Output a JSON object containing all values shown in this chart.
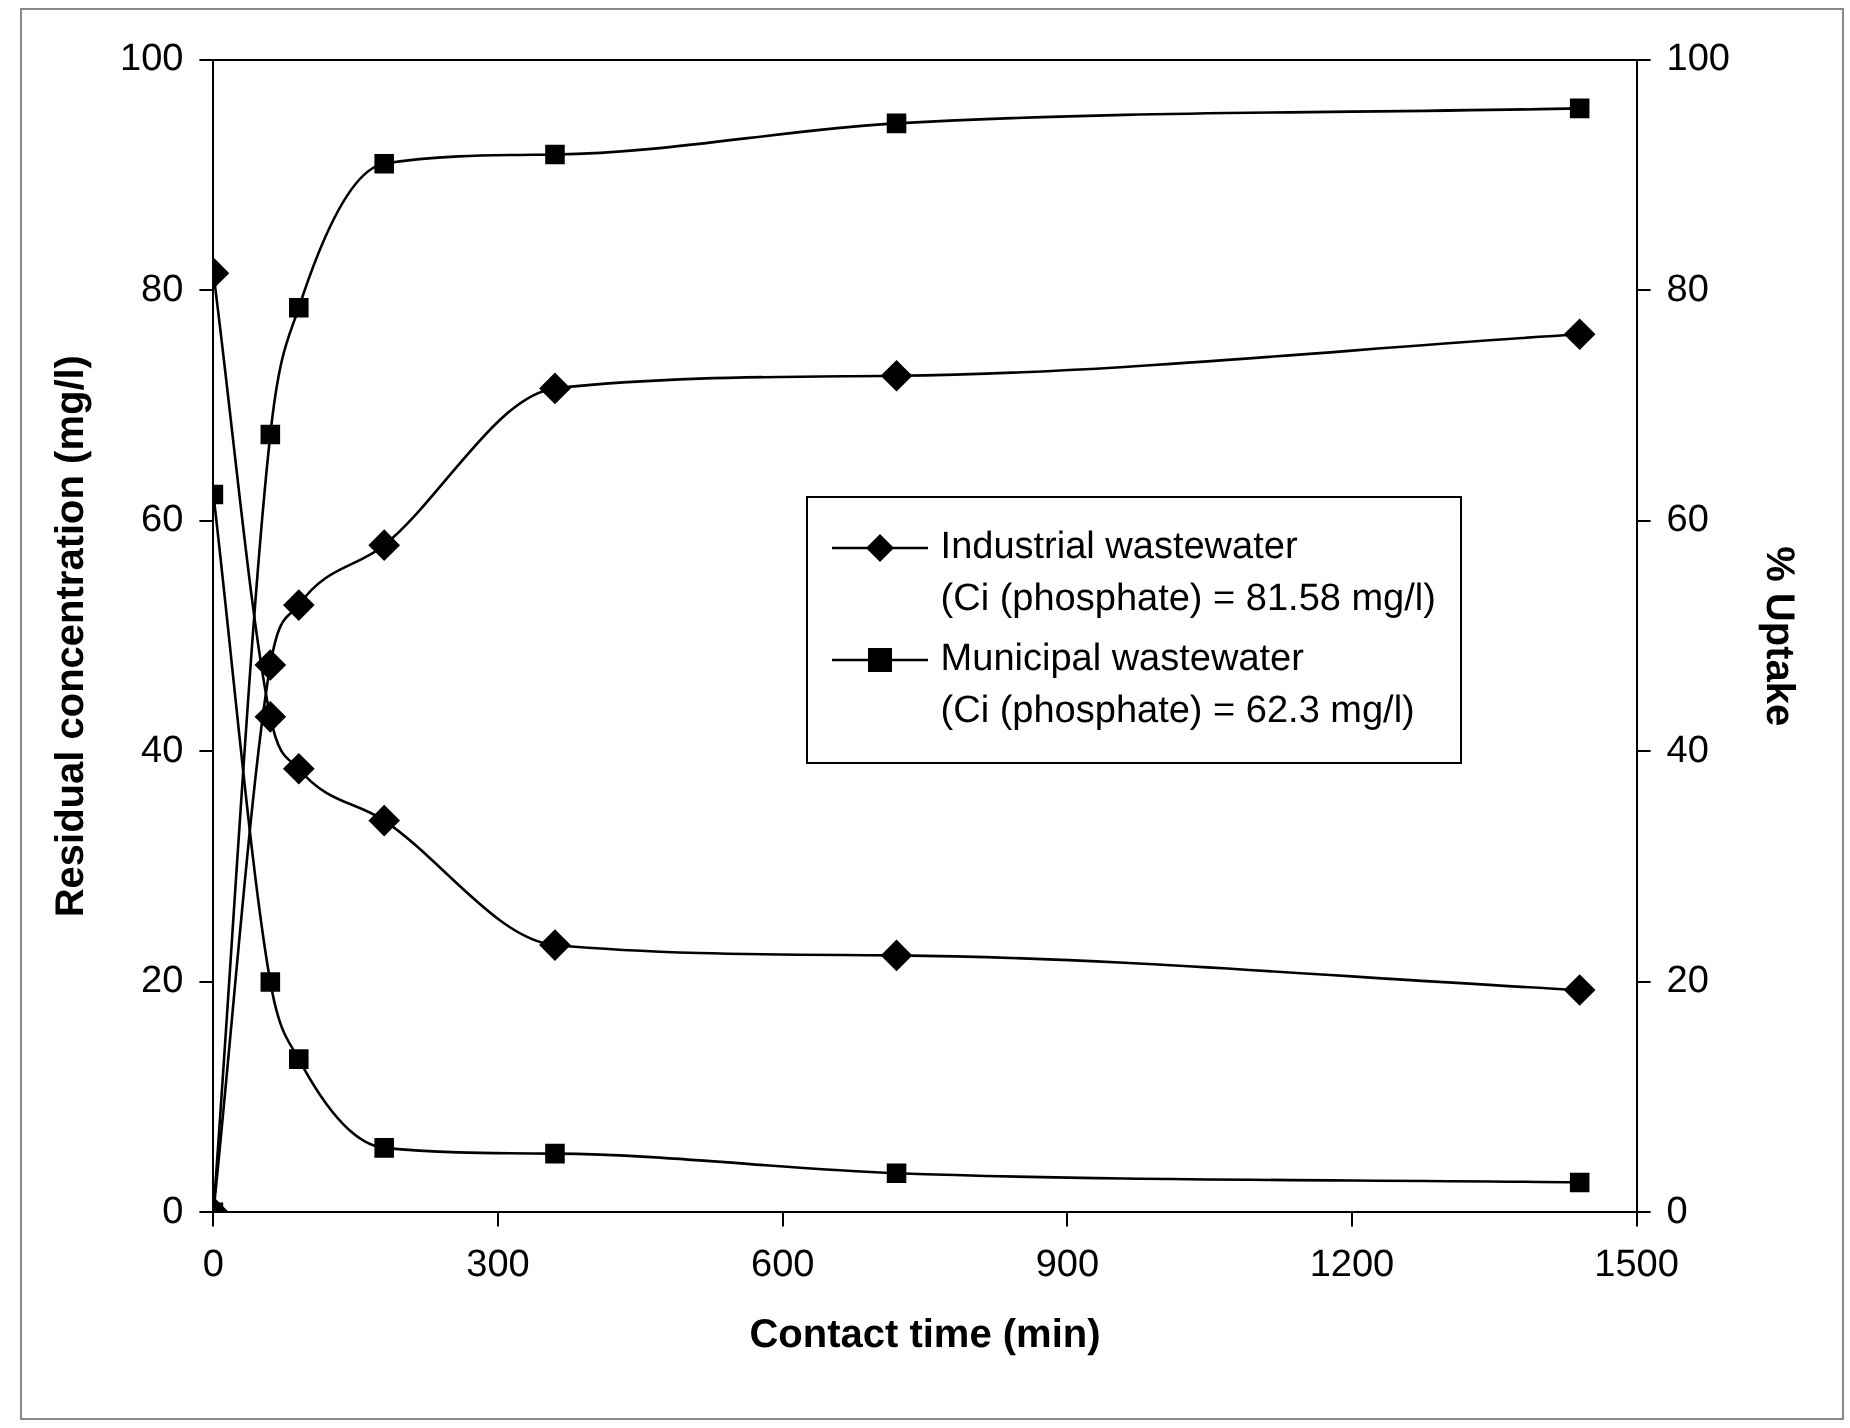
{
  "chart_data": {
    "type": "line",
    "xlabel": "Contact time (min)",
    "ylabel": "Residual concentration (mg/l)",
    "y2label": "% Uptake",
    "x": [
      0,
      60,
      90,
      180,
      360,
      720,
      1440
    ],
    "xlim": [
      0,
      1500
    ],
    "xticks": [
      0,
      300,
      600,
      900,
      1200,
      1500
    ],
    "ylim": [
      0,
      100
    ],
    "yticks": [
      0,
      20,
      40,
      60,
      80,
      100
    ],
    "y2lim": [
      0,
      100
    ],
    "y2ticks": [
      0,
      20,
      40,
      60,
      80,
      100
    ],
    "grid": false,
    "legend": "right",
    "line_style": "solid",
    "series": [
      {
        "name": "Industrial wastewater\n(Ci (phosphate) = 81.58 mg/l)",
        "color": "#000000",
        "marker": "diamond",
        "values": [
          81.5,
          43,
          38.5,
          34,
          23.2,
          22.3,
          19.3
        ]
      },
      {
        "name": "Municipal wastewater\n(Ci (phosphate) = 62.3 mg/l)",
        "color": "#000000",
        "marker": "square",
        "values": [
          62.3,
          20,
          13.3,
          5.6,
          5.1,
          3.4,
          2.6
        ]
      },
      {
        "color": "#000000",
        "marker": "diamond",
        "axis": "y2",
        "values": [
          0,
          47.5,
          52.7,
          57.9,
          71.5,
          72.6,
          76.2
        ]
      },
      {
        "color": "#000000",
        "marker": "square",
        "axis": "y2",
        "values": [
          0,
          67.5,
          78.5,
          91,
          91.8,
          94.5,
          95.8
        ]
      }
    ]
  }
}
